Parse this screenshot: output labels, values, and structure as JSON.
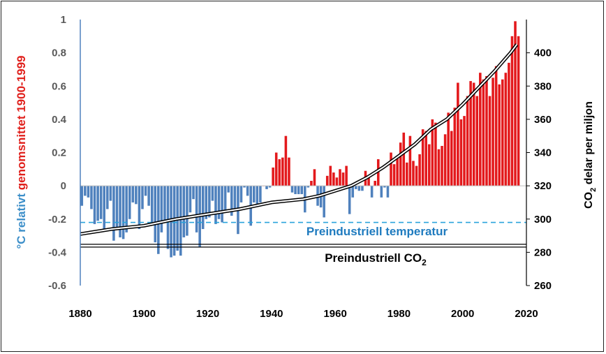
{
  "chart_data": {
    "type": "bar",
    "title": "",
    "xlabel": "",
    "ylabel_left": {
      "parts": [
        {
          "text": "°C relativt ",
          "color": "#3d8fc9"
        },
        {
          "text": "genomsnittet 1900-1999",
          "color": "#e0201c"
        }
      ]
    },
    "ylabel_right": {
      "prefix": "CO",
      "sub": "2",
      "suffix": " delar per miljon"
    },
    "xlim": [
      1880,
      2020
    ],
    "xticks": [
      "1880",
      "1900",
      "1920",
      "1940",
      "1960",
      "1980",
      "2000",
      "2020"
    ],
    "ylim_left": [
      -0.6,
      1.0
    ],
    "yticks_left": [
      "-0.6",
      "-0.4",
      "-0.2",
      "0",
      "0.2",
      "0.4",
      "0.6",
      "0.8",
      "1"
    ],
    "ylim_right": [
      260,
      420
    ],
    "yticks_right": [
      "260",
      "280",
      "300",
      "320",
      "340",
      "360",
      "380",
      "400"
    ],
    "colors": {
      "positive": "#e3191c",
      "negative": "#4f81bd",
      "co2_line": "#000000",
      "preindustrial_temp_line": "#29a3dc"
    },
    "series": [
      {
        "name": "",
        "x": [
          1880,
          1881,
          1882,
          1883,
          1884,
          1885,
          1886,
          1887,
          1888,
          1889,
          1890,
          1891,
          1892,
          1893,
          1894,
          1895,
          1896,
          1897,
          1898,
          1899,
          1900,
          1901,
          1902,
          1903,
          1904,
          1905,
          1906,
          1907,
          1908,
          1909,
          1910,
          1911,
          1912,
          1913,
          1914,
          1915,
          1916,
          1917,
          1918,
          1919,
          1920,
          1921,
          1922,
          1923,
          1924,
          1925,
          1926,
          1927,
          1928,
          1929,
          1930,
          1931,
          1932,
          1933,
          1934,
          1935,
          1936,
          1937,
          1938,
          1939,
          1940,
          1941,
          1942,
          1943,
          1944,
          1945,
          1946,
          1947,
          1948,
          1949,
          1950,
          1951,
          1952,
          1953,
          1954,
          1955,
          1956,
          1957,
          1958,
          1959,
          1960,
          1961,
          1962,
          1963,
          1964,
          1965,
          1966,
          1967,
          1968,
          1969,
          1970,
          1971,
          1972,
          1973,
          1974,
          1975,
          1976,
          1977,
          1978,
          1979,
          1980,
          1981,
          1982,
          1983,
          1984,
          1985,
          1986,
          1987,
          1988,
          1989,
          1990,
          1991,
          1992,
          1993,
          1994,
          1995,
          1996,
          1997,
          1998,
          1999,
          2000,
          2001,
          2002,
          2003,
          2004,
          2005,
          2006,
          2007,
          2008,
          2009,
          2010,
          2011,
          2012,
          2013,
          2014,
          2015,
          2016,
          2017
        ],
        "values": [
          -0.12,
          -0.06,
          -0.07,
          -0.14,
          -0.23,
          -0.21,
          -0.2,
          -0.26,
          -0.14,
          -0.09,
          -0.33,
          -0.25,
          -0.31,
          -0.32,
          -0.28,
          -0.2,
          -0.1,
          -0.11,
          -0.26,
          -0.14,
          -0.06,
          -0.12,
          -0.23,
          -0.34,
          -0.41,
          -0.28,
          -0.22,
          -0.38,
          -0.43,
          -0.42,
          -0.39,
          -0.42,
          -0.31,
          -0.3,
          -0.16,
          -0.08,
          -0.28,
          -0.37,
          -0.26,
          -0.2,
          -0.19,
          -0.09,
          -0.23,
          -0.2,
          -0.22,
          -0.15,
          -0.04,
          -0.18,
          -0.14,
          -0.29,
          -0.1,
          -0.01,
          -0.06,
          -0.24,
          -0.1,
          -0.12,
          -0.1,
          0.0,
          -0.02,
          -0.01,
          0.11,
          0.2,
          0.16,
          0.17,
          0.3,
          0.17,
          -0.04,
          -0.05,
          -0.05,
          -0.05,
          -0.16,
          -0.01,
          0.03,
          0.1,
          -0.12,
          -0.13,
          -0.19,
          0.06,
          0.12,
          0.08,
          0.05,
          0.1,
          0.08,
          0.12,
          -0.17,
          -0.07,
          -0.02,
          -0.03,
          -0.03,
          0.09,
          0.05,
          -0.07,
          0.03,
          0.16,
          -0.07,
          -0.01,
          -0.07,
          0.2,
          0.13,
          0.17,
          0.26,
          0.32,
          0.14,
          0.3,
          0.15,
          0.12,
          0.19,
          0.34,
          0.33,
          0.25,
          0.4,
          0.38,
          0.22,
          0.24,
          0.31,
          0.44,
          0.33,
          0.47,
          0.62,
          0.4,
          0.42,
          0.54,
          0.63,
          0.62,
          0.54,
          0.68,
          0.64,
          0.66,
          0.54,
          0.65,
          0.72,
          0.61,
          0.64,
          0.68,
          0.74,
          0.9,
          0.99,
          0.9
        ],
        "color_rule": "red if value > 0, blue if value < 0"
      },
      {
        "name": "",
        "axis": "right",
        "type": "line",
        "x": [
          1880,
          1890,
          1900,
          1905,
          1910,
          1920,
          1930,
          1940,
          1950,
          1955,
          1960,
          1965,
          1970,
          1975,
          1980,
          1985,
          1990,
          1995,
          2000,
          2005,
          2010,
          2015,
          2017
        ],
        "values": [
          291,
          294,
          296,
          298,
          300,
          303,
          306,
          310,
          312,
          314,
          317,
          320,
          325,
          331,
          338,
          345,
          354,
          360,
          369,
          379,
          389,
          400,
          405
        ]
      }
    ],
    "reference_lines": [
      {
        "label": "Preindustriell temperatur",
        "axis": "left",
        "value": -0.22,
        "style": "dashed"
      },
      {
        "label_prefix": "Preindustriell CO",
        "label_sub": "2",
        "axis": "right",
        "value": 284,
        "style": "double"
      }
    ],
    "grid": false,
    "legend": "none"
  }
}
